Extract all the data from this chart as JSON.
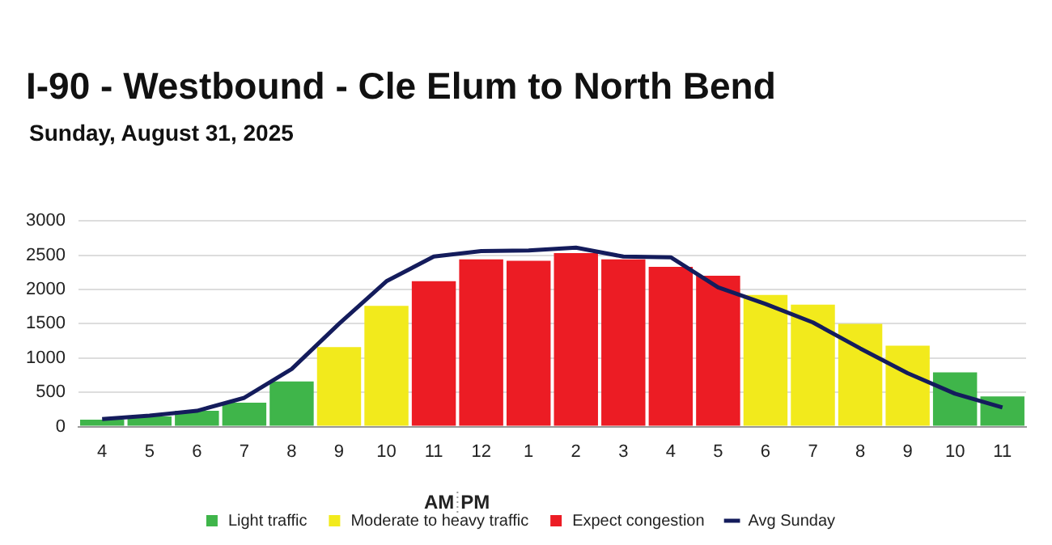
{
  "chart_data": {
    "type": "bar",
    "title": "I-90 - Westbound - Cle Elum to North Bend",
    "subtitle": "Sunday, August 31, 2025",
    "categories": [
      "4",
      "5",
      "6",
      "7",
      "8",
      "9",
      "10",
      "11",
      "12",
      "1",
      "2",
      "3",
      "4",
      "5",
      "6",
      "7",
      "8",
      "9",
      "10",
      "11"
    ],
    "stacked": true,
    "series": [
      {
        "name": "Light traffic",
        "color": "#3fb54a",
        "values": [
          100,
          150,
          230,
          350,
          660,
          null,
          null,
          null,
          null,
          null,
          null,
          null,
          null,
          null,
          null,
          null,
          null,
          null,
          790,
          440
        ]
      },
      {
        "name": "Moderate to heavy traffic",
        "color": "#f2ea1c",
        "values": [
          null,
          null,
          null,
          null,
          null,
          1160,
          1760,
          null,
          null,
          null,
          null,
          null,
          null,
          null,
          1920,
          1780,
          1500,
          1180,
          null,
          null
        ]
      },
      {
        "name": "Expect congestion",
        "color": "#ec1c24",
        "values": [
          null,
          null,
          null,
          null,
          null,
          null,
          null,
          2120,
          2440,
          2420,
          2530,
          2440,
          2330,
          2200,
          null,
          null,
          null,
          null,
          null,
          null
        ]
      },
      {
        "name": "Avg Sunday",
        "type": "line",
        "color": "#141c5c",
        "values": [
          110,
          160,
          230,
          420,
          840,
          1500,
          2120,
          2480,
          2560,
          2570,
          2610,
          2480,
          2470,
          2030,
          1790,
          1520,
          1140,
          780,
          480,
          280
        ]
      }
    ],
    "ylim": [
      0,
      3000
    ],
    "yticks": [
      0,
      500,
      1000,
      1500,
      2000,
      2500,
      3000
    ],
    "grid": "y",
    "legend": "bottom",
    "marker": "none",
    "annotations": [
      "AM",
      "PM"
    ]
  }
}
